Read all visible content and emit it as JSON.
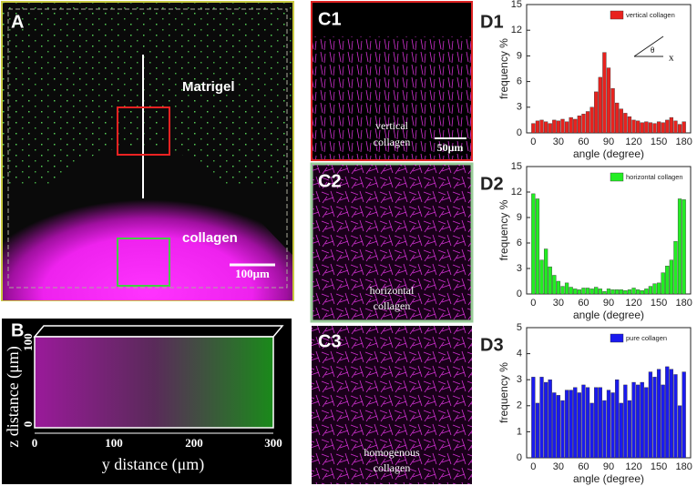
{
  "panels": {
    "A": {
      "label": "A",
      "matrigel": "Matrigel",
      "collagen": "collagen",
      "scale": "100μm"
    },
    "B": {
      "label": "B",
      "xlabel": "y distance (μm)",
      "ylabel": "z distance (μm)",
      "xticks": [
        "0",
        "100",
        "200",
        "300"
      ],
      "yticks": [
        "100",
        "0"
      ]
    },
    "C1": {
      "label": "C1",
      "text": [
        "vertical",
        "collagen"
      ],
      "scale": "50μm"
    },
    "C2": {
      "label": "C2",
      "text": [
        "horizontal",
        "collagen"
      ]
    },
    "C3": {
      "label": "C3",
      "text": [
        "homogenous",
        "collagen"
      ]
    },
    "D": [
      "D1",
      "D2",
      "D3"
    ]
  },
  "chart_data": [
    {
      "type": "bar",
      "xlabel": "angle (degree)",
      "ylabel": "frequency %",
      "annotations": [
        "θ",
        "x"
      ],
      "x": [
        0,
        5,
        10,
        15,
        20,
        25,
        30,
        35,
        40,
        45,
        50,
        55,
        60,
        65,
        70,
        75,
        80,
        85,
        90,
        95,
        100,
        105,
        110,
        115,
        120,
        125,
        130,
        135,
        140,
        145,
        150,
        155,
        160,
        165,
        170,
        175,
        180
      ],
      "series": [
        {
          "name": "vertical collagen",
          "color": "#e8221e",
          "values": [
            1.1,
            1.4,
            1.5,
            1.3,
            1.1,
            1.5,
            1.4,
            1.6,
            1.3,
            1.8,
            1.6,
            2.0,
            2.2,
            2.5,
            3.0,
            4.8,
            6.5,
            9.4,
            7.6,
            5.2,
            3.5,
            2.8,
            2.3,
            1.9,
            1.5,
            1.4,
            1.2,
            1.3,
            1.2,
            1.1,
            1.3,
            1.2,
            1.5,
            1.8,
            1.4,
            1.0,
            1.3
          ]
        }
      ],
      "xlim": [
        -8,
        188
      ],
      "xticks": [
        0,
        30,
        60,
        90,
        120,
        150,
        180
      ],
      "ylim": [
        0,
        15
      ],
      "yticks": [
        0,
        3,
        6,
        9,
        12,
        15
      ],
      "legend": "upper right"
    },
    {
      "type": "bar",
      "xlabel": "angle (degree)",
      "ylabel": "frequency %",
      "x": [
        0,
        5,
        10,
        15,
        20,
        25,
        30,
        35,
        40,
        45,
        50,
        55,
        60,
        65,
        70,
        75,
        80,
        85,
        90,
        95,
        100,
        105,
        110,
        115,
        120,
        125,
        130,
        135,
        140,
        145,
        150,
        155,
        160,
        165,
        170,
        175,
        180
      ],
      "series": [
        {
          "name": "horizontal collagen",
          "color": "#22ee22",
          "values": [
            11.8,
            11.2,
            4.0,
            5.3,
            3.2,
            2.2,
            1.5,
            0.9,
            1.3,
            0.8,
            0.6,
            0.5,
            0.7,
            0.7,
            0.6,
            0.8,
            0.6,
            0.3,
            0.6,
            0.5,
            0.5,
            0.5,
            0.4,
            0.5,
            0.7,
            0.5,
            0.4,
            0.6,
            0.9,
            1.2,
            1.3,
            2.5,
            3.3,
            4.0,
            6.2,
            11.2,
            11.1
          ]
        }
      ],
      "xlim": [
        -8,
        188
      ],
      "xticks": [
        0,
        30,
        60,
        90,
        120,
        150,
        180
      ],
      "ylim": [
        0,
        15
      ],
      "yticks": [
        0,
        3,
        6,
        9,
        12,
        15
      ],
      "legend": "upper right"
    },
    {
      "type": "bar",
      "xlabel": "angle (degree)",
      "ylabel": "frequency %",
      "x": [
        0,
        5,
        10,
        15,
        20,
        25,
        30,
        35,
        40,
        45,
        50,
        55,
        60,
        65,
        70,
        75,
        80,
        85,
        90,
        95,
        100,
        105,
        110,
        115,
        120,
        125,
        130,
        135,
        140,
        145,
        150,
        155,
        160,
        165,
        170,
        175,
        180
      ],
      "series": [
        {
          "name": "pure collagen",
          "color": "#1a1aee",
          "values": [
            3.1,
            2.1,
            3.1,
            2.9,
            3.0,
            2.5,
            2.4,
            2.2,
            2.6,
            2.6,
            2.7,
            2.5,
            2.8,
            2.7,
            2.1,
            2.7,
            2.7,
            2.2,
            2.6,
            2.5,
            3.0,
            2.1,
            2.8,
            2.2,
            2.9,
            2.8,
            2.9,
            2.7,
            3.3,
            3.1,
            3.4,
            2.8,
            3.5,
            3.4,
            3.2,
            2.0,
            3.3
          ]
        }
      ],
      "xlim": [
        -8,
        188
      ],
      "xticks": [
        0,
        30,
        60,
        90,
        120,
        150,
        180
      ],
      "ylim": [
        0,
        5
      ],
      "yticks": [
        0,
        1,
        2,
        3,
        4,
        5
      ],
      "legend": "upper right"
    }
  ]
}
